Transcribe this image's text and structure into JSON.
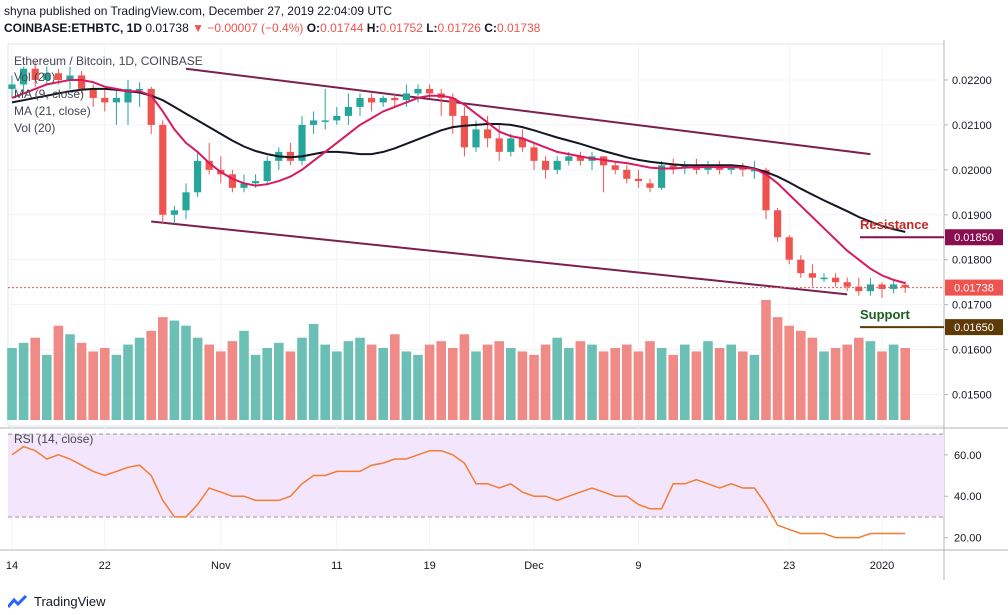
{
  "header": {
    "published": "shyna published on TradingView.com, December 27, 2019 22:04:09 UTC",
    "symbol": "COINBASE:ETHBTC, 1D",
    "last": "0.01738",
    "change": "▼ −0.00007 (−0.4%)",
    "o_label": "O:",
    "o": "0.01744",
    "h_label": "H:",
    "h": "0.01752",
    "l_label": "L:",
    "l": "0.01726",
    "c_label": "C:",
    "c": "0.01738"
  },
  "legend": {
    "title": "Ethereum / Bitcoin, 1D, COINBASE",
    "vol1": "Vol (20)",
    "ma9": "MA (9, close)",
    "ma21": "MA (21, close)",
    "vol2": "Vol (20)",
    "rsi": "RSI (14, close)"
  },
  "annotations": {
    "resistance_label": "Resistance",
    "resistance_value": "0.01850",
    "support_label": "Support",
    "support_value": "0.01650",
    "last_price_label": "0.01738"
  },
  "brand": "TradingView",
  "colors": {
    "up": "#26a69a",
    "down": "#ef5350",
    "vol_up": "#6cbfb4",
    "vol_down": "#f08a86",
    "ma9": "#d81b60",
    "ma21": "#131722",
    "trendline": "#7b1f4f",
    "rsi": "#f57c32",
    "rsi_band": "#f3e5fb",
    "resistance": "#880e4f",
    "support": "#5d3a06"
  },
  "chart_data": {
    "type": "candlestick",
    "price_axis": {
      "ticks": [
        "0.02200",
        "0.02100",
        "0.02000",
        "0.01900",
        "0.01800",
        "0.01700",
        "0.01600",
        "0.01500"
      ],
      "range": [
        0.0143,
        0.0228
      ]
    },
    "rsi_axis": {
      "ticks": [
        "60.00",
        "40.00",
        "20.00"
      ],
      "range": [
        15,
        72
      ],
      "band": [
        30,
        70
      ]
    },
    "x_ticks": [
      "14",
      "22",
      "Nov",
      "11",
      "19",
      "Dec",
      "9",
      "23",
      "2020"
    ],
    "x_tick_index": [
      0,
      8,
      18,
      28,
      36,
      45,
      54,
      67,
      75
    ],
    "resistance": 0.0185,
    "support": 0.0165,
    "last_price": 0.01738,
    "trendlines": [
      {
        "from": [
          15,
          0.02225
        ],
        "to": [
          74,
          0.02035
        ]
      },
      {
        "from": [
          12,
          0.01885
        ],
        "to": [
          72,
          0.01723
        ]
      }
    ],
    "candles": [
      {
        "o": 0.0218,
        "h": 0.0221,
        "l": 0.0216,
        "c": 0.0219
      },
      {
        "o": 0.0219,
        "h": 0.0223,
        "l": 0.0217,
        "c": 0.02225
      },
      {
        "o": 0.02225,
        "h": 0.0224,
        "l": 0.02185,
        "c": 0.022
      },
      {
        "o": 0.022,
        "h": 0.0223,
        "l": 0.0219,
        "c": 0.02215
      },
      {
        "o": 0.02215,
        "h": 0.02225,
        "l": 0.0219,
        "c": 0.022
      },
      {
        "o": 0.022,
        "h": 0.0223,
        "l": 0.0218,
        "c": 0.0221
      },
      {
        "o": 0.0221,
        "h": 0.0222,
        "l": 0.0217,
        "c": 0.0218
      },
      {
        "o": 0.0218,
        "h": 0.0219,
        "l": 0.0214,
        "c": 0.0216
      },
      {
        "o": 0.0216,
        "h": 0.0218,
        "l": 0.0213,
        "c": 0.0215
      },
      {
        "o": 0.0215,
        "h": 0.0218,
        "l": 0.021,
        "c": 0.0216
      },
      {
        "o": 0.0215,
        "h": 0.022,
        "l": 0.021,
        "c": 0.0218
      },
      {
        "o": 0.0218,
        "h": 0.02195,
        "l": 0.0214,
        "c": 0.0218
      },
      {
        "o": 0.0218,
        "h": 0.02185,
        "l": 0.0208,
        "c": 0.021
      },
      {
        "o": 0.021,
        "h": 0.0211,
        "l": 0.0188,
        "c": 0.019
      },
      {
        "o": 0.019,
        "h": 0.0192,
        "l": 0.0188,
        "c": 0.0191
      },
      {
        "o": 0.0191,
        "h": 0.0197,
        "l": 0.0189,
        "c": 0.0195
      },
      {
        "o": 0.0195,
        "h": 0.0204,
        "l": 0.0194,
        "c": 0.0202
      },
      {
        "o": 0.0202,
        "h": 0.0206,
        "l": 0.0199,
        "c": 0.02
      },
      {
        "o": 0.02,
        "h": 0.0203,
        "l": 0.0197,
        "c": 0.0199
      },
      {
        "o": 0.0199,
        "h": 0.02,
        "l": 0.0195,
        "c": 0.0196
      },
      {
        "o": 0.0196,
        "h": 0.0199,
        "l": 0.0195,
        "c": 0.0197
      },
      {
        "o": 0.0197,
        "h": 0.0199,
        "l": 0.0196,
        "c": 0.01975
      },
      {
        "o": 0.01975,
        "h": 0.0203,
        "l": 0.01965,
        "c": 0.0202
      },
      {
        "o": 0.0202,
        "h": 0.0205,
        "l": 0.02,
        "c": 0.0204
      },
      {
        "o": 0.0204,
        "h": 0.0206,
        "l": 0.0201,
        "c": 0.0202
      },
      {
        "o": 0.0202,
        "h": 0.0212,
        "l": 0.0201,
        "c": 0.021
      },
      {
        "o": 0.021,
        "h": 0.0213,
        "l": 0.0208,
        "c": 0.0211
      },
      {
        "o": 0.0211,
        "h": 0.0218,
        "l": 0.0209,
        "c": 0.0211
      },
      {
        "o": 0.0211,
        "h": 0.0214,
        "l": 0.021,
        "c": 0.0212
      },
      {
        "o": 0.0212,
        "h": 0.0217,
        "l": 0.021,
        "c": 0.0214
      },
      {
        "o": 0.0214,
        "h": 0.0217,
        "l": 0.0212,
        "c": 0.0216
      },
      {
        "o": 0.0216,
        "h": 0.0217,
        "l": 0.0213,
        "c": 0.0215
      },
      {
        "o": 0.0215,
        "h": 0.02165,
        "l": 0.0214,
        "c": 0.0216
      },
      {
        "o": 0.0216,
        "h": 0.0217,
        "l": 0.0214,
        "c": 0.02155
      },
      {
        "o": 0.02155,
        "h": 0.0219,
        "l": 0.0214,
        "c": 0.0217
      },
      {
        "o": 0.0217,
        "h": 0.0219,
        "l": 0.0215,
        "c": 0.0218
      },
      {
        "o": 0.0218,
        "h": 0.0219,
        "l": 0.0216,
        "c": 0.0217
      },
      {
        "o": 0.0217,
        "h": 0.0218,
        "l": 0.0212,
        "c": 0.0216
      },
      {
        "o": 0.0216,
        "h": 0.0217,
        "l": 0.0208,
        "c": 0.0212
      },
      {
        "o": 0.0212,
        "h": 0.0214,
        "l": 0.0203,
        "c": 0.0205
      },
      {
        "o": 0.0205,
        "h": 0.0211,
        "l": 0.0204,
        "c": 0.0209
      },
      {
        "o": 0.0209,
        "h": 0.0212,
        "l": 0.0205,
        "c": 0.0207
      },
      {
        "o": 0.0207,
        "h": 0.021,
        "l": 0.0202,
        "c": 0.0204
      },
      {
        "o": 0.0204,
        "h": 0.0208,
        "l": 0.0203,
        "c": 0.0207
      },
      {
        "o": 0.0207,
        "h": 0.0209,
        "l": 0.0204,
        "c": 0.0205
      },
      {
        "o": 0.0205,
        "h": 0.0206,
        "l": 0.02,
        "c": 0.0202
      },
      {
        "o": 0.0202,
        "h": 0.0203,
        "l": 0.0198,
        "c": 0.02
      },
      {
        "o": 0.02,
        "h": 0.0203,
        "l": 0.0199,
        "c": 0.0202
      },
      {
        "o": 0.0202,
        "h": 0.0204,
        "l": 0.0201,
        "c": 0.0203
      },
      {
        "o": 0.0203,
        "h": 0.0204,
        "l": 0.0201,
        "c": 0.0202
      },
      {
        "o": 0.0202,
        "h": 0.0204,
        "l": 0.02,
        "c": 0.0203
      },
      {
        "o": 0.0203,
        "h": 0.0203,
        "l": 0.0195,
        "c": 0.0201
      },
      {
        "o": 0.0201,
        "h": 0.0202,
        "l": 0.0199,
        "c": 0.02
      },
      {
        "o": 0.02,
        "h": 0.0201,
        "l": 0.0197,
        "c": 0.0198
      },
      {
        "o": 0.0198,
        "h": 0.02,
        "l": 0.0196,
        "c": 0.01975
      },
      {
        "o": 0.0197,
        "h": 0.0198,
        "l": 0.0195,
        "c": 0.0196
      },
      {
        "o": 0.0196,
        "h": 0.0202,
        "l": 0.01955,
        "c": 0.0201
      },
      {
        "o": 0.0201,
        "h": 0.02025,
        "l": 0.0199,
        "c": 0.02005
      },
      {
        "o": 0.02005,
        "h": 0.0202,
        "l": 0.0199,
        "c": 0.0201
      },
      {
        "o": 0.0201,
        "h": 0.02025,
        "l": 0.0199,
        "c": 0.02
      },
      {
        "o": 0.02,
        "h": 0.0202,
        "l": 0.0199,
        "c": 0.0201
      },
      {
        "o": 0.0201,
        "h": 0.0202,
        "l": 0.0199,
        "c": 0.02
      },
      {
        "o": 0.02,
        "h": 0.0201,
        "l": 0.0199,
        "c": 0.02005
      },
      {
        "o": 0.02005,
        "h": 0.02015,
        "l": 0.01985,
        "c": 0.02
      },
      {
        "o": 0.02,
        "h": 0.0202,
        "l": 0.0198,
        "c": 0.02
      },
      {
        "o": 0.02,
        "h": 0.02005,
        "l": 0.0189,
        "c": 0.0191
      },
      {
        "o": 0.0191,
        "h": 0.01915,
        "l": 0.0184,
        "c": 0.0185
      },
      {
        "o": 0.0185,
        "h": 0.01855,
        "l": 0.0179,
        "c": 0.018
      },
      {
        "o": 0.018,
        "h": 0.0181,
        "l": 0.0176,
        "c": 0.0177
      },
      {
        "o": 0.0177,
        "h": 0.0179,
        "l": 0.0174,
        "c": 0.0176
      },
      {
        "o": 0.0176,
        "h": 0.0177,
        "l": 0.0175,
        "c": 0.0176
      },
      {
        "o": 0.0176,
        "h": 0.0177,
        "l": 0.0174,
        "c": 0.0175
      },
      {
        "o": 0.0175,
        "h": 0.0176,
        "l": 0.0173,
        "c": 0.0174
      },
      {
        "o": 0.0174,
        "h": 0.0176,
        "l": 0.0172,
        "c": 0.0173
      },
      {
        "o": 0.0173,
        "h": 0.0176,
        "l": 0.0172,
        "c": 0.01745
      },
      {
        "o": 0.01745,
        "h": 0.0175,
        "l": 0.01715,
        "c": 0.01735
      },
      {
        "o": 0.01735,
        "h": 0.01755,
        "l": 0.01725,
        "c": 0.01745
      },
      {
        "o": 0.01744,
        "h": 0.01752,
        "l": 0.01726,
        "c": 0.01738
      }
    ],
    "volume": [
      42,
      45,
      48,
      38,
      55,
      50,
      45,
      40,
      42,
      38,
      44,
      48,
      52,
      60,
      58,
      55,
      48,
      44,
      40,
      46,
      52,
      38,
      42,
      45,
      40,
      48,
      56,
      44,
      40,
      46,
      48,
      44,
      42,
      50,
      40,
      38,
      44,
      46,
      42,
      50,
      40,
      44,
      46,
      42,
      40,
      38,
      44,
      48,
      42,
      46,
      44,
      40,
      42,
      44,
      40,
      46,
      42,
      38,
      44,
      40,
      46,
      42,
      44,
      40,
      38,
      70,
      60,
      55,
      52,
      48,
      40,
      42,
      44,
      48,
      46,
      40,
      44,
      42
    ],
    "ma9": [
      0.0216,
      0.0217,
      0.0218,
      0.0219,
      0.02195,
      0.022,
      0.022,
      0.02195,
      0.02185,
      0.0218,
      0.02175,
      0.02175,
      0.02165,
      0.0213,
      0.0209,
      0.0206,
      0.0204,
      0.02015,
      0.01995,
      0.0198,
      0.0197,
      0.01965,
      0.01968,
      0.01975,
      0.01985,
      0.02,
      0.0202,
      0.0204,
      0.0206,
      0.0208,
      0.021,
      0.02115,
      0.0213,
      0.0214,
      0.0215,
      0.0216,
      0.02165,
      0.02165,
      0.0216,
      0.02145,
      0.02125,
      0.02105,
      0.02085,
      0.02075,
      0.0207,
      0.0206,
      0.0205,
      0.0204,
      0.02035,
      0.0203,
      0.02025,
      0.02022,
      0.02018,
      0.02015,
      0.0201,
      0.02005,
      0.02003,
      0.02003,
      0.02005,
      0.02006,
      0.02006,
      0.02006,
      0.02006,
      0.02005,
      0.02002,
      0.0199,
      0.0197,
      0.01945,
      0.0192,
      0.01895,
      0.0187,
      0.01845,
      0.0182,
      0.018,
      0.0178,
      0.01765,
      0.01755,
      0.01748
    ],
    "ma21": [
      0.0215,
      0.02155,
      0.0216,
      0.02165,
      0.0217,
      0.02175,
      0.02178,
      0.0218,
      0.0218,
      0.02178,
      0.02175,
      0.02172,
      0.02165,
      0.02155,
      0.0214,
      0.02125,
      0.0211,
      0.02095,
      0.0208,
      0.02065,
      0.02052,
      0.02042,
      0.02035,
      0.0203,
      0.02028,
      0.0203,
      0.02035,
      0.0204,
      0.0204,
      0.02038,
      0.02035,
      0.02035,
      0.0204,
      0.02048,
      0.02058,
      0.02068,
      0.02078,
      0.02088,
      0.02095,
      0.02098,
      0.021,
      0.02102,
      0.02102,
      0.021,
      0.02095,
      0.02088,
      0.0208,
      0.02072,
      0.02065,
      0.02058,
      0.0205,
      0.02042,
      0.02035,
      0.02028,
      0.02022,
      0.02018,
      0.02015,
      0.02012,
      0.0201,
      0.0201,
      0.0201,
      0.0201,
      0.0201,
      0.02008,
      0.02003,
      0.01995,
      0.01985,
      0.01972,
      0.01958,
      0.01945,
      0.01932,
      0.0192,
      0.01908,
      0.01895,
      0.01885,
      0.01875,
      0.01868,
      0.01862
    ],
    "rsi": [
      60,
      64,
      62,
      58,
      60,
      58,
      55,
      52,
      50,
      52,
      54,
      55,
      50,
      38,
      30,
      30,
      36,
      44,
      42,
      40,
      40,
      38,
      38,
      38,
      40,
      46,
      50,
      50,
      52,
      52,
      52,
      55,
      56,
      58,
      58,
      60,
      62,
      62,
      60,
      56,
      46,
      46,
      44,
      46,
      42,
      40,
      40,
      38,
      40,
      42,
      44,
      42,
      40,
      40,
      36,
      34,
      34,
      46,
      46,
      48,
      46,
      44,
      46,
      44,
      44,
      36,
      26,
      24,
      22,
      22,
      22,
      20,
      20,
      20,
      22,
      22,
      22,
      22
    ]
  }
}
